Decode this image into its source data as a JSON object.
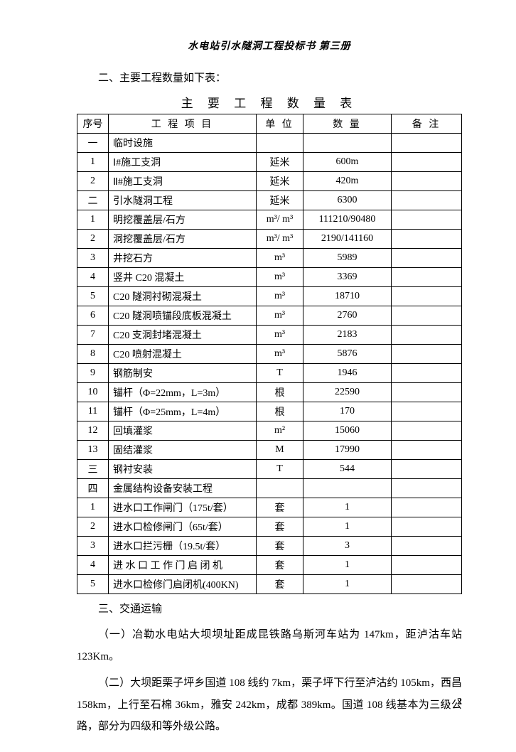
{
  "doc_header": "水电站引水隧洞工程投标书  第三册",
  "section2": "二、主要工程数量如下表：",
  "table_title": "主 要 工 程 数 量 表",
  "columns": {
    "c1": "序号",
    "c2": "工 程 项 目",
    "c3": "单 位",
    "c4": "数    量",
    "c5": "备   注"
  },
  "rows": [
    {
      "seq": "一",
      "proj": "临时设施",
      "unit": "",
      "qty": "",
      "note": ""
    },
    {
      "seq": "1",
      "proj": "Ⅰ#施工支洞",
      "unit": "延米",
      "qty": "600m",
      "note": ""
    },
    {
      "seq": "2",
      "proj": "Ⅱ#施工支洞",
      "unit": "延米",
      "qty": "420m",
      "note": ""
    },
    {
      "seq": "二",
      "proj": "引水隧洞工程",
      "unit": "延米",
      "qty": "6300",
      "note": ""
    },
    {
      "seq": "1",
      "proj": "明挖覆盖层/石方",
      "unit": "m³/ m³",
      "qty": "111210/90480",
      "note": ""
    },
    {
      "seq": "2",
      "proj": "洞挖覆盖层/石方",
      "unit": "m³/ m³",
      "qty": "2190/141160",
      "note": ""
    },
    {
      "seq": "3",
      "proj": "井挖石方",
      "unit": "m³",
      "qty": "5989",
      "note": ""
    },
    {
      "seq": "4",
      "proj": "竖井 C20 混凝土",
      "unit": "m³",
      "qty": "3369",
      "note": ""
    },
    {
      "seq": "5",
      "proj": "C20 隧洞衬砌混凝土",
      "unit": "m³",
      "qty": "18710",
      "note": ""
    },
    {
      "seq": "6",
      "proj": "C20 隧洞喷锚段底板混凝土",
      "unit": "m³",
      "qty": "2760",
      "note": ""
    },
    {
      "seq": "7",
      "proj": "C20 支洞封堵混凝土",
      "unit": "m³",
      "qty": "2183",
      "note": ""
    },
    {
      "seq": "8",
      "proj": "C20 喷射混凝土",
      "unit": "m³",
      "qty": "5876",
      "note": ""
    },
    {
      "seq": "9",
      "proj": "钢筋制安",
      "unit": "T",
      "qty": "1946",
      "note": ""
    },
    {
      "seq": "10",
      "proj": "锚杆（Φ=22mm，L=3m）",
      "unit": "根",
      "qty": "22590",
      "note": ""
    },
    {
      "seq": "11",
      "proj": "锚杆（Φ=25mm，L=4m）",
      "unit": "根",
      "qty": "170",
      "note": ""
    },
    {
      "seq": "12",
      "proj": "回填灌浆",
      "unit": "m²",
      "qty": "15060",
      "note": ""
    },
    {
      "seq": "13",
      "proj": "固结灌浆",
      "unit": "M",
      "qty": "17990",
      "note": ""
    },
    {
      "seq": "三",
      "proj": "钢衬安装",
      "unit": "T",
      "qty": "544",
      "note": ""
    },
    {
      "seq": "四",
      "proj": "金属结构设备安装工程",
      "unit": "",
      "qty": "",
      "note": ""
    },
    {
      "seq": "1",
      "proj": "进水口工作闸门（175t/套）",
      "unit": "套",
      "qty": "1",
      "note": ""
    },
    {
      "seq": "2",
      "proj": "进水口检修闸门（65t/套）",
      "unit": "套",
      "qty": "1",
      "note": ""
    },
    {
      "seq": "3",
      "proj": "进水口拦污栅（19.5t/套）",
      "unit": "套",
      "qty": "3",
      "note": ""
    },
    {
      "seq": "4",
      "proj": "进 水 口 工 作 门 启 闭 机",
      "unit": "套",
      "qty": "1",
      "note": ""
    },
    {
      "seq": "5",
      "proj": "进水口检修门启闭机(400KN)",
      "unit": "套",
      "qty": "1",
      "note": ""
    }
  ],
  "section3": "三、交通运输",
  "para1": "（一）冶勒水电站大坝坝址距成昆铁路乌斯河车站为 147km，距泸沽车站 123Km。",
  "para2": "（二）大坝距栗子坪乡国道 108 线约 7km，栗子坪下行至泸沽约 105km，西昌158km，上行至石棉 36km，雅安 242km，成都 389km。国道 108 线基本为三级公路，部分为四级和等外级公路。",
  "page_number": "2"
}
